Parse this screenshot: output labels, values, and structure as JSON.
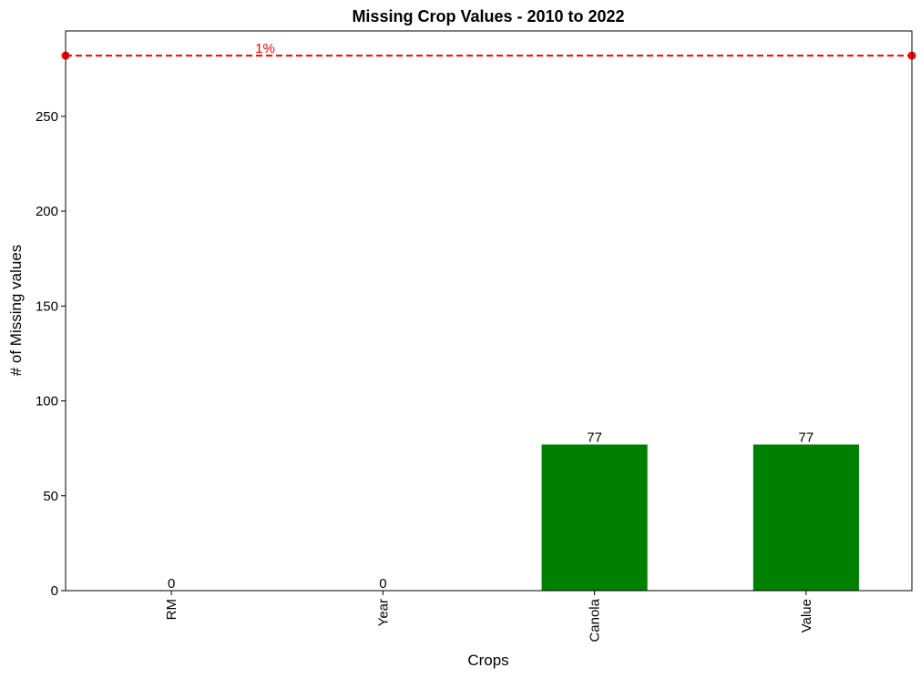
{
  "chart_data": {
    "type": "bar",
    "title": "Missing Crop Values - 2010 to 2022",
    "xlabel": "Crops",
    "ylabel": "# of Missing values",
    "categories": [
      "RM",
      "Year",
      "Canola",
      "Value"
    ],
    "values": [
      0,
      0,
      77,
      77
    ],
    "data_labels": [
      "0",
      "0",
      "77",
      "77"
    ],
    "ylim": [
      0,
      295
    ],
    "yticks": [
      0,
      50,
      100,
      150,
      200,
      250
    ],
    "grid": false,
    "legend": "none",
    "bar_color": "#008000",
    "reference_line": {
      "value": 282,
      "label": "1%",
      "color": "#ff0000",
      "style": "dashed"
    }
  }
}
